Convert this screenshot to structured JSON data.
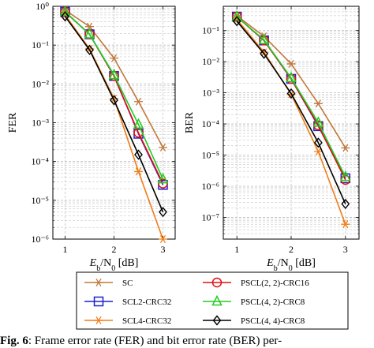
{
  "chart_data": [
    {
      "type": "line",
      "ylabel": "FER",
      "xlabel": "E_b/N_0 [dB]",
      "yscale": "log",
      "xlim": [
        0.75,
        3.25
      ],
      "ylim": [
        1e-06,
        1
      ],
      "xticks": [
        1,
        2,
        3
      ],
      "yticks_exp": [
        -6,
        -5,
        -4,
        -3,
        -2,
        -1,
        0
      ],
      "grid": "dashed",
      "x": [
        1,
        1.5,
        2,
        2.5,
        3
      ],
      "series": [
        {
          "name": "SC",
          "color": "#c0783a",
          "marker": "star",
          "values": [
            0.8,
            0.3,
            0.046,
            0.0035,
            0.00023
          ]
        },
        {
          "name": "SCL2-CRC32",
          "color": "#1f1fd0",
          "marker": "square",
          "values": [
            0.72,
            0.19,
            0.016,
            0.00052,
            2.5e-05
          ]
        },
        {
          "name": "SCL4-CRC32",
          "color": "#f07d18",
          "marker": "star",
          "values": [
            0.6,
            0.08,
            0.0042,
            5.5e-05,
            1e-06
          ]
        },
        {
          "name": "PSCL(2, 2)-CRC16",
          "color": "#e01010",
          "marker": "circle",
          "values": [
            0.72,
            0.19,
            0.016,
            0.00055,
            2.7e-05
          ]
        },
        {
          "name": "PSCL(4, 2)-CRC8",
          "color": "#22cc22",
          "marker": "triangle",
          "values": [
            0.72,
            0.19,
            0.017,
            0.0009,
            3.5e-05
          ]
        },
        {
          "name": "PSCL(4, 4)-CRC8",
          "color": "#000000",
          "marker": "diamond",
          "values": [
            0.55,
            0.075,
            0.0038,
            0.00015,
            5e-06
          ]
        }
      ]
    },
    {
      "type": "line",
      "ylabel": "BER",
      "xlabel": "E_b/N_0 [dB]",
      "yscale": "log",
      "xlim": [
        0.75,
        3.25
      ],
      "ylim": [
        2e-08,
        0.6
      ],
      "xticks": [
        1,
        2,
        3
      ],
      "yticks_exp": [
        -7,
        -6,
        -5,
        -4,
        -3,
        -2,
        -1
      ],
      "grid": "dashed",
      "x": [
        1,
        1.5,
        2,
        2.5,
        3
      ],
      "series": [
        {
          "name": "SC",
          "color": "#c0783a",
          "marker": "star",
          "values": [
            0.3,
            0.065,
            0.0085,
            0.00045,
            1.7e-05
          ]
        },
        {
          "name": "SCL2-CRC32",
          "color": "#1f1fd0",
          "marker": "square",
          "values": [
            0.28,
            0.048,
            0.0028,
            8.5e-05,
            1.8e-06
          ]
        },
        {
          "name": "SCL4-CRC32",
          "color": "#f07d18",
          "marker": "star",
          "values": [
            0.23,
            0.02,
            0.0009,
            1.3e-05,
            6e-08
          ]
        },
        {
          "name": "PSCL(2, 2)-CRC16",
          "color": "#e01010",
          "marker": "circle",
          "values": [
            0.28,
            0.048,
            0.0028,
            9e-05,
            1.6e-06
          ]
        },
        {
          "name": "PSCL(4, 2)-CRC8",
          "color": "#22cc22",
          "marker": "triangle",
          "values": [
            0.28,
            0.05,
            0.003,
            0.00011,
            2e-06
          ]
        },
        {
          "name": "PSCL(4, 4)-CRC8",
          "color": "#000000",
          "marker": "diamond",
          "values": [
            0.2,
            0.018,
            0.00095,
            2.5e-05,
            2.7e-07
          ]
        }
      ]
    }
  ],
  "legend": {
    "placement": "bottom",
    "items": [
      "SC",
      "SCL2-CRC32",
      "SCL4-CRC32",
      "PSCL(2, 2)-CRC16",
      "PSCL(4, 2)-CRC8",
      "PSCL(4, 4)-CRC8"
    ]
  },
  "caption": {
    "label": "Fig. 6",
    "text": ": Frame error rate (FER) and bit error rate (BER) per-"
  }
}
